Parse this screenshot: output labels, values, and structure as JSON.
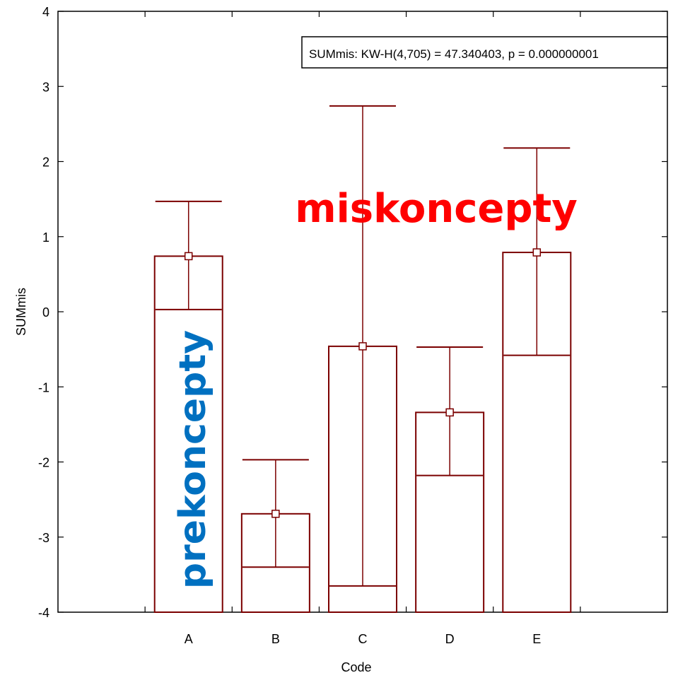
{
  "chart_data": {
    "type": "bar",
    "xlabel": "Code",
    "ylabel": "SUMmis",
    "ylim": [
      -4,
      4
    ],
    "yticks": [
      4,
      3,
      2,
      1,
      0,
      -1,
      -2,
      -3,
      -4
    ],
    "categories": [
      "A",
      "B",
      "C",
      "D",
      "E"
    ],
    "series": [
      {
        "values": [
          0.74,
          -2.69,
          -0.46,
          -1.34,
          0.79
        ],
        "error_low": [
          0.03,
          -3.4,
          -3.65,
          -2.18,
          -0.58
        ],
        "error_high": [
          1.47,
          -1.97,
          2.74,
          -0.47,
          2.18
        ]
      }
    ],
    "stat_box": "SUMmis:  KW-H(4,705) = 47.340403, p = 0.000000001",
    "annotations": [
      {
        "text": "miskoncepty",
        "color": "#ff0000"
      },
      {
        "text": "prekoncepty",
        "color": "#0070c0"
      }
    ],
    "bar_color": "#7b0000",
    "grid": false
  }
}
